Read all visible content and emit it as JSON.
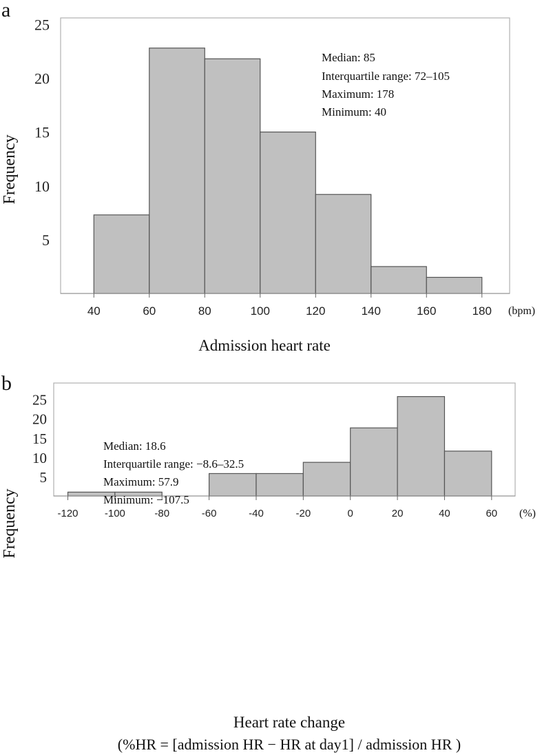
{
  "colors": {
    "bar_fill": "#c0c0c0",
    "bar_stroke": "#555555",
    "frame": "#b0b0b0",
    "text": "#111111"
  },
  "chart_data": [
    {
      "type": "bar",
      "panel_label": "a",
      "xlabel": "Admission heart rate",
      "xunit": "(bpm)",
      "ylabel": "Frequency",
      "bin_edges": [
        40,
        60,
        80,
        100,
        120,
        140,
        160,
        180
      ],
      "values": [
        7.3,
        22.8,
        21.8,
        15,
        9.2,
        2.5,
        1.5
      ],
      "xlim": [
        28,
        190
      ],
      "ylim": [
        0,
        25.6
      ],
      "xticks": [
        40,
        60,
        80,
        100,
        120,
        140,
        160,
        180
      ],
      "xtick_labels": [
        "40",
        "60",
        "80",
        "100",
        "120",
        "140",
        "160",
        "180"
      ],
      "yticks": [
        5,
        10,
        15,
        20,
        25
      ],
      "ytick_labels": [
        "5",
        "10",
        "15",
        "20",
        "25"
      ],
      "annotations": [
        "Median: 85",
        "Interquartile range: 72–105",
        "Maximum: 178",
        "Minimum: 40"
      ]
    },
    {
      "type": "bar",
      "panel_label": "b",
      "xlabel": "Heart rate change",
      "xlabel2": "(%HR = [admission HR − HR at day1] / admission HR )",
      "xunit": "(%)",
      "ylabel": "Frequency",
      "bin_edges": [
        -120,
        -100,
        -80,
        -60,
        -40,
        -20,
        0,
        20,
        40,
        60
      ],
      "values": [
        1,
        1,
        0,
        5.8,
        5.8,
        8.7,
        17.6,
        25.7,
        11.6
      ],
      "xlim": [
        -126,
        70
      ],
      "ylim": [
        0,
        29.2
      ],
      "xticks": [
        -120,
        -100,
        -80,
        -60,
        -40,
        -20,
        0,
        20,
        40,
        60
      ],
      "xtick_labels": [
        "-120",
        "-100",
        "-80",
        "-60",
        "-40",
        "-20",
        "0",
        "20",
        "40",
        "60"
      ],
      "yticks": [
        5,
        10,
        15,
        20,
        25
      ],
      "ytick_labels": [
        "5",
        "10",
        "15",
        "20",
        "25"
      ],
      "annotations": [
        "Median: 18.6",
        "Interquartile range: −8.6–32.5",
        "Maximum: 57.9",
        "Minimum: −107.5"
      ]
    }
  ]
}
